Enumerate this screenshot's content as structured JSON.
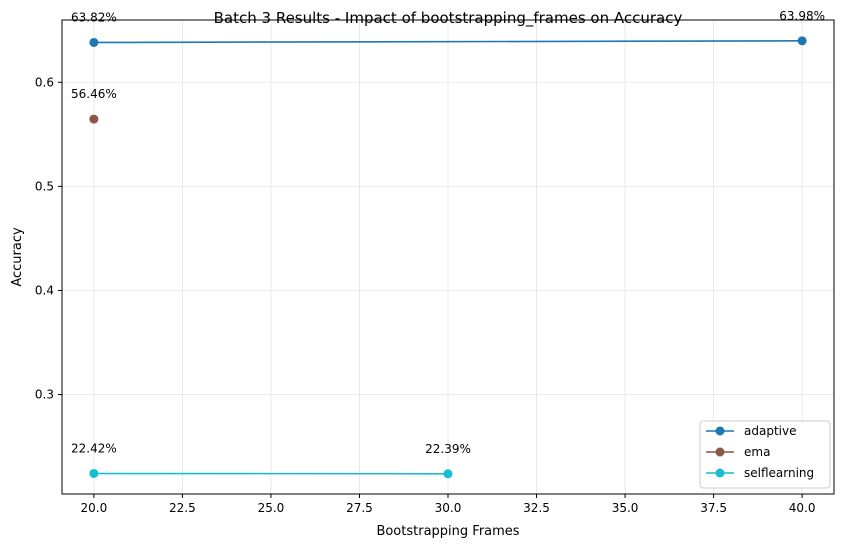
{
  "chart_data": {
    "type": "line",
    "title": "Batch 3 Results - Impact of bootstrapping_frames on Accuracy",
    "xlabel": "Bootstrapping Frames",
    "ylabel": "Accuracy",
    "xlim": [
      19.1,
      40.9
    ],
    "ylim": [
      0.2045,
      0.6598
    ],
    "xticks": [
      20.0,
      22.5,
      25.0,
      27.5,
      30.0,
      32.5,
      35.0,
      37.5,
      40.0
    ],
    "xtick_labels": [
      "20.0",
      "22.5",
      "25.0",
      "27.5",
      "30.0",
      "32.5",
      "35.0",
      "37.5",
      "40.0"
    ],
    "yticks": [
      0.3,
      0.4,
      0.5,
      0.6
    ],
    "ytick_labels": [
      "0.3",
      "0.4",
      "0.5",
      "0.6"
    ],
    "grid": true,
    "legend_position": "bottom-right",
    "series": [
      {
        "name": "adaptive",
        "color": "#1f77b4",
        "x": [
          20,
          40
        ],
        "y": [
          0.6382,
          0.6398
        ],
        "labels": [
          "63.82%",
          "63.98%"
        ]
      },
      {
        "name": "ema",
        "color": "#8c564b",
        "x": [
          20
        ],
        "y": [
          0.5646
        ],
        "labels": [
          "56.46%"
        ]
      },
      {
        "name": "selflearning",
        "color": "#17becf",
        "x": [
          20,
          30
        ],
        "y": [
          0.2242,
          0.2239
        ],
        "labels": [
          "22.42%",
          "22.39%"
        ]
      }
    ]
  }
}
